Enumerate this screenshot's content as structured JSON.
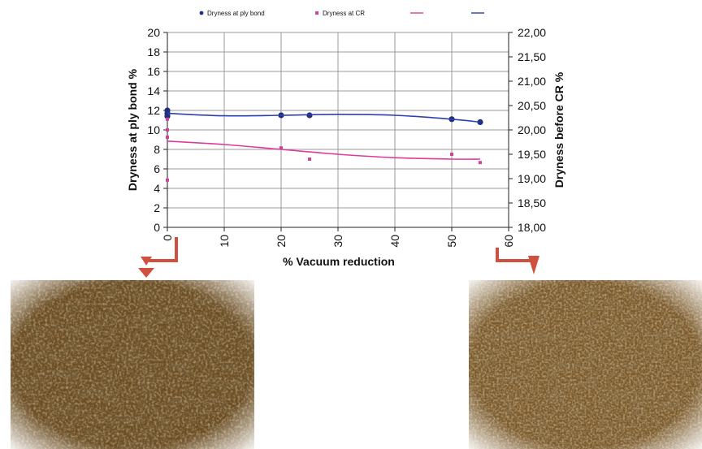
{
  "chart_data": {
    "type": "scatter",
    "title": "",
    "xlabel": "% Vacuum reduction",
    "ylabel": "Dryness at ply bond %",
    "y2label": "Dryness before CR %",
    "xlim": [
      0,
      60
    ],
    "ylim": [
      0,
      20
    ],
    "y2lim": [
      18,
      22
    ],
    "x_ticks": [
      "0",
      "10",
      "20",
      "30",
      "40",
      "50",
      "60"
    ],
    "y_ticks": [
      "0",
      "2",
      "4",
      "6",
      "8",
      "10",
      "12",
      "14",
      "16",
      "18",
      "20"
    ],
    "y2_ticks": [
      "18,00",
      "18,50",
      "19,00",
      "19,50",
      "20,00",
      "20,50",
      "21,00",
      "21,50",
      "22,00"
    ],
    "grid": true,
    "legend_position": "top",
    "series": [
      {
        "name": "Dryness at ply bond",
        "axis": "left",
        "marker": "circle",
        "color": "#1f2f7a",
        "points": [
          [
            0,
            12.0
          ],
          [
            0,
            11.7
          ],
          [
            0,
            11.4
          ],
          [
            20,
            11.5
          ],
          [
            25,
            11.5
          ],
          [
            50,
            11.1
          ],
          [
            55,
            10.8
          ]
        ]
      },
      {
        "name": "Dryness at CR",
        "axis": "right",
        "marker": "square",
        "color": "#cc4499",
        "points": [
          [
            0,
            20.22
          ],
          [
            0,
            20.0
          ],
          [
            0,
            19.85
          ],
          [
            0,
            18.97
          ],
          [
            20,
            19.63
          ],
          [
            25,
            19.4
          ],
          [
            50,
            19.5
          ],
          [
            55,
            19.33
          ]
        ]
      },
      {
        "name": "",
        "axis": "right",
        "marker": "line",
        "color": "#e0399a",
        "trend": [
          [
            0,
            19.77
          ],
          [
            10,
            19.7
          ],
          [
            20,
            19.6
          ],
          [
            30,
            19.5
          ],
          [
            40,
            19.43
          ],
          [
            50,
            19.4
          ],
          [
            55,
            19.4
          ]
        ]
      },
      {
        "name": "",
        "axis": "left",
        "marker": "line",
        "color": "#2a40b0",
        "trend": [
          [
            0,
            11.7
          ],
          [
            10,
            11.45
          ],
          [
            20,
            11.5
          ],
          [
            30,
            11.6
          ],
          [
            40,
            11.5
          ],
          [
            50,
            11.1
          ],
          [
            55,
            10.8
          ]
        ]
      }
    ]
  },
  "colors": {
    "photo_base": "#6b4e26",
    "photo_dark": "#2e2010",
    "photo_light": "#b5935a",
    "arrow": "#d05040"
  }
}
